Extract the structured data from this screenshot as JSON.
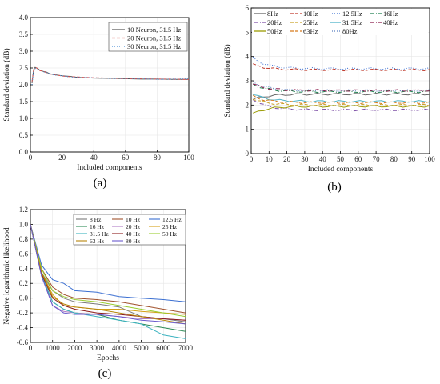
{
  "chart_data": [
    {
      "id": "a",
      "panel_label": "(a)",
      "type": "line",
      "xlabel": "Included components",
      "ylabel": "Standard deviation (dB)",
      "xlim": [
        0,
        100
      ],
      "ylim": [
        0,
        4.0
      ],
      "xticks": [
        0,
        20,
        40,
        60,
        80,
        100
      ],
      "yticks": [
        0.0,
        0.5,
        1.0,
        1.5,
        2.0,
        2.5,
        3.0,
        3.5,
        4.0
      ],
      "ytick_labels": [
        "0.0",
        "0.5",
        "1.0",
        "1.5",
        "2.0",
        "2.5",
        "3.0",
        "3.5",
        "4.0"
      ],
      "grid": true,
      "legend": "top-right",
      "series": [
        {
          "name": "10 Neuron, 31.5 Hz",
          "color": "#555555",
          "style": "solid",
          "x": [
            1,
            2,
            3,
            4,
            5,
            6,
            8,
            10,
            12,
            15,
            20,
            25,
            30,
            40,
            50,
            60,
            70,
            80,
            90,
            100
          ],
          "y": [
            2.05,
            2.45,
            2.52,
            2.5,
            2.47,
            2.43,
            2.4,
            2.38,
            2.33,
            2.3,
            2.27,
            2.25,
            2.22,
            2.2,
            2.19,
            2.18,
            2.17,
            2.17,
            2.16,
            2.16
          ]
        },
        {
          "name": "20 Neuron, 31.5 Hz",
          "color": "#d9534f",
          "style": "dashed",
          "x": [
            1,
            2,
            3,
            4,
            5,
            6,
            8,
            10,
            12,
            15,
            20,
            25,
            30,
            40,
            50,
            60,
            70,
            80,
            90,
            100
          ],
          "y": [
            2.1,
            2.42,
            2.5,
            2.5,
            2.46,
            2.42,
            2.41,
            2.36,
            2.32,
            2.31,
            2.26,
            2.24,
            2.23,
            2.21,
            2.2,
            2.18,
            2.18,
            2.17,
            2.17,
            2.16
          ]
        },
        {
          "name": "30 Neuron, 31.5 Hz",
          "color": "#4a8fd6",
          "style": "dotted",
          "x": [
            1,
            2,
            3,
            4,
            5,
            6,
            8,
            10,
            12,
            15,
            20,
            25,
            30,
            40,
            50,
            60,
            70,
            80,
            90,
            100
          ],
          "y": [
            2.0,
            2.4,
            2.48,
            2.49,
            2.45,
            2.44,
            2.38,
            2.37,
            2.34,
            2.29,
            2.27,
            2.23,
            2.22,
            2.21,
            2.19,
            2.19,
            2.18,
            2.16,
            2.17,
            2.18
          ]
        }
      ]
    },
    {
      "id": "b",
      "panel_label": "(b)",
      "type": "line",
      "xlabel": "Included components",
      "ylabel": "Standard deviation (dB)",
      "xlim": [
        0,
        100
      ],
      "ylim": [
        0,
        6
      ],
      "xticks": [
        0,
        10,
        20,
        30,
        40,
        50,
        60,
        70,
        80,
        90,
        100
      ],
      "yticks": [
        0,
        1,
        2,
        3,
        4,
        5,
        6
      ],
      "ytick_labels": [
        "0",
        "1",
        "2",
        "3",
        "4",
        "5",
        "6"
      ],
      "grid": true,
      "legend": "top",
      "series": [
        {
          "name": "8Hz",
          "color": "#666666",
          "style": "solid",
          "base": 2.45,
          "start": 2.2
        },
        {
          "name": "10Hz",
          "color": "#c0392b",
          "style": "dashed",
          "base": 3.45,
          "start": 3.7
        },
        {
          "name": "12.5Hz",
          "color": "#3b6fd1",
          "style": "dotted",
          "base": 3.5,
          "start": 4.0
        },
        {
          "name": "16Hz",
          "color": "#1d7f4f",
          "style": "dashdot",
          "base": 2.55,
          "start": 2.9
        },
        {
          "name": "20Hz",
          "color": "#7d4fa6",
          "style": "dashdot",
          "base": 1.8,
          "start": 2.3
        },
        {
          "name": "25Hz",
          "color": "#c9a227",
          "style": "dashed",
          "base": 2.0,
          "start": 2.3
        },
        {
          "name": "31.5Hz",
          "color": "#4fb3c8",
          "style": "solid",
          "base": 2.15,
          "start": 2.5
        },
        {
          "name": "40Hz",
          "color": "#8b1a4a",
          "style": "dashdot",
          "base": 2.6,
          "start": 2.9
        },
        {
          "name": "50Hz",
          "color": "#9a9a00",
          "style": "solid",
          "base": 1.95,
          "start": 1.6
        },
        {
          "name": "63Hz",
          "color": "#d67a1c",
          "style": "dashed",
          "base": 2.1,
          "start": 2.4
        },
        {
          "name": "80Hz",
          "color": "#5a7fc0",
          "style": "dotted",
          "base": 2.6,
          "start": 3.0
        }
      ]
    },
    {
      "id": "c",
      "panel_label": "(c)",
      "type": "line",
      "xlabel": "Epochs",
      "ylabel": "Negative logarithmic likelihood",
      "xlim": [
        0,
        7000
      ],
      "ylim": [
        -0.6,
        1.2
      ],
      "xticks": [
        0,
        1000,
        2000,
        3000,
        4000,
        5000,
        6000,
        7000
      ],
      "yticks": [
        -0.6,
        -0.4,
        -0.2,
        0.0,
        0.2,
        0.4,
        0.6,
        0.8,
        1.0,
        1.2
      ],
      "ytick_labels": [
        "-0.6",
        "-0.4",
        "-0.2",
        "0.0",
        "0.2",
        "0.4",
        "0.6",
        "0.8",
        "1.0",
        "1.2"
      ],
      "grid": true,
      "legend": "top-right",
      "series": [
        {
          "name": "8 Hz",
          "color": "#7a7a7a",
          "y": [
            1.0,
            0.35,
            0.1,
            0.0,
            -0.05,
            -0.08,
            -0.12,
            -0.25,
            -0.28,
            -0.32
          ]
        },
        {
          "name": "10 Hz",
          "color": "#a0522d",
          "y": [
            1.0,
            0.4,
            0.15,
            0.05,
            0.0,
            -0.02,
            -0.05,
            -0.1,
            -0.15,
            -0.2
          ]
        },
        {
          "name": "12.5 Hz",
          "color": "#3b6fd1",
          "y": [
            1.0,
            0.45,
            0.25,
            0.2,
            0.1,
            0.08,
            0.02,
            0.0,
            -0.02,
            -0.05
          ]
        },
        {
          "name": "16 Hz",
          "color": "#2e8b57",
          "y": [
            1.0,
            0.3,
            -0.05,
            -0.15,
            -0.2,
            -0.22,
            -0.3,
            -0.35,
            -0.4,
            -0.45
          ]
        },
        {
          "name": "20 Hz",
          "color": "#b07cc6",
          "y": [
            1.0,
            0.3,
            -0.1,
            -0.18,
            -0.2,
            -0.22,
            -0.25,
            -0.28,
            -0.28,
            -0.3
          ]
        },
        {
          "name": "25 Hz",
          "color": "#d4a017",
          "y": [
            1.0,
            0.35,
            0.05,
            -0.1,
            -0.12,
            -0.15,
            -0.15,
            -0.18,
            -0.2,
            -0.22
          ]
        },
        {
          "name": "31.5 Hz",
          "color": "#3cb3c0",
          "y": [
            1.0,
            0.32,
            -0.05,
            -0.15,
            -0.2,
            -0.25,
            -0.3,
            -0.35,
            -0.5,
            -0.55
          ]
        },
        {
          "name": "40 Hz",
          "color": "#8b1a1a",
          "y": [
            1.0,
            0.33,
            0.0,
            -0.1,
            -0.15,
            -0.2,
            -0.22,
            -0.25,
            -0.28,
            -0.3
          ]
        },
        {
          "name": "50 Hz",
          "color": "#9acd32",
          "y": [
            1.0,
            0.4,
            0.1,
            0.02,
            -0.02,
            -0.05,
            -0.1,
            -0.15,
            -0.2,
            -0.25
          ]
        },
        {
          "name": "63 Hz",
          "color": "#b8860b",
          "y": [
            1.0,
            0.35,
            0.02,
            -0.08,
            -0.12,
            -0.15,
            -0.2,
            -0.25,
            -0.3,
            -0.35
          ]
        },
        {
          "name": "80 Hz",
          "color": "#6a5acd",
          "y": [
            1.0,
            0.3,
            -0.1,
            -0.2,
            -0.22,
            -0.22,
            -0.25,
            -0.3,
            -0.32,
            -0.35
          ]
        }
      ],
      "x": [
        0,
        500,
        1000,
        1500,
        2000,
        3000,
        4000,
        5000,
        6000,
        7000
      ]
    }
  ]
}
